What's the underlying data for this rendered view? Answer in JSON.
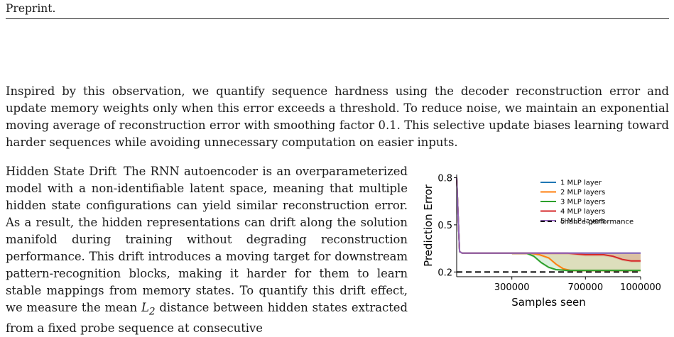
{
  "header": {
    "title": "Preprint."
  },
  "intro_paragraph": "Inspired by this observation, we quantify sequence hardness using the decoder reconstruction error and update memory weights only when this error exceeds a threshold. To reduce noise, we maintain an exponential moving average of reconstruction error with smoothing factor 0.1. This selective update biases learning toward harder sequences while avoiding unnecessary computation on easier inputs.",
  "drift_section": {
    "heading": "Hidden State Drift",
    "text_before_math": "The RNN autoencoder is an overparameterized model with a non-identifiable latent space, meaning that multiple hidden state configurations can yield similar reconstruction error. As a result, the hidden representations can drift along the solution manifold during training without degrading reconstruction performance. This drift introduces a moving target for downstream pattern-recognition blocks, making it harder for them to learn stable mappings from memory states. To quantify this drift effect, we measure the mean ",
    "math_symbol": "L",
    "math_subscript": "2",
    "text_after_math": " distance between hidden states extracted from a fixed probe sequence at consecutive"
  },
  "chart_data": {
    "type": "line",
    "xlabel": "Samples seen",
    "ylabel": "Prediction Error",
    "xlim": [
      0,
      1000000
    ],
    "ylim": [
      0.17,
      0.82
    ],
    "xticks": [
      300000,
      700000,
      1000000
    ],
    "xtick_labels": [
      "300000",
      "700000",
      "1000000"
    ],
    "yticks": [
      0.2,
      0.5,
      0.8
    ],
    "ytick_labels": [
      "0.2",
      "0.5",
      "0.8"
    ],
    "grid": false,
    "legend_position": "top-right",
    "series": [
      {
        "name": "1 MLP layer",
        "color": "#1f77b4",
        "x": [
          0,
          8000,
          16000,
          30000,
          100000,
          200000,
          300000,
          400000,
          500000,
          600000,
          700000,
          800000,
          900000,
          1000000
        ],
        "y": [
          0.8,
          0.55,
          0.33,
          0.32,
          0.32,
          0.32,
          0.32,
          0.32,
          0.32,
          0.32,
          0.32,
          0.32,
          0.32,
          0.32
        ]
      },
      {
        "name": "2 MLP layers",
        "color": "#ff7f0e",
        "x": [
          0,
          8000,
          16000,
          30000,
          100000,
          200000,
          300000,
          400000,
          450000,
          500000,
          540000,
          580000,
          620000,
          700000,
          800000,
          900000,
          1000000
        ],
        "y": [
          0.8,
          0.55,
          0.33,
          0.32,
          0.32,
          0.32,
          0.32,
          0.32,
          0.31,
          0.29,
          0.25,
          0.22,
          0.21,
          0.21,
          0.21,
          0.21,
          0.21
        ]
      },
      {
        "name": "3 MLP layers",
        "color": "#2ca02c",
        "x": [
          0,
          8000,
          16000,
          30000,
          100000,
          200000,
          300000,
          380000,
          420000,
          460000,
          500000,
          540000,
          600000,
          700000,
          800000,
          900000,
          1000000
        ],
        "y": [
          0.8,
          0.55,
          0.33,
          0.32,
          0.32,
          0.32,
          0.32,
          0.32,
          0.3,
          0.26,
          0.23,
          0.215,
          0.21,
          0.21,
          0.21,
          0.21,
          0.21
        ]
      },
      {
        "name": "4 MLP layers",
        "color": "#d62728",
        "x": [
          0,
          8000,
          16000,
          30000,
          100000,
          200000,
          300000,
          400000,
          500000,
          600000,
          700000,
          800000,
          850000,
          900000,
          950000,
          1000000
        ],
        "y": [
          0.8,
          0.55,
          0.33,
          0.32,
          0.32,
          0.32,
          0.32,
          0.32,
          0.32,
          0.32,
          0.31,
          0.31,
          0.3,
          0.28,
          0.27,
          0.27
        ]
      },
      {
        "name": "5 MLP layers",
        "color": "#9467bd",
        "x": [
          0,
          8000,
          16000,
          30000,
          100000,
          200000,
          300000,
          400000,
          500000,
          600000,
          700000,
          800000,
          900000,
          1000000
        ],
        "y": [
          0.8,
          0.55,
          0.33,
          0.32,
          0.32,
          0.32,
          0.32,
          0.32,
          0.32,
          0.32,
          0.32,
          0.32,
          0.32,
          0.32
        ]
      }
    ],
    "reference_line": {
      "name": "chance performance",
      "y": 0.2,
      "style": "dashed",
      "color": "#000000"
    }
  }
}
